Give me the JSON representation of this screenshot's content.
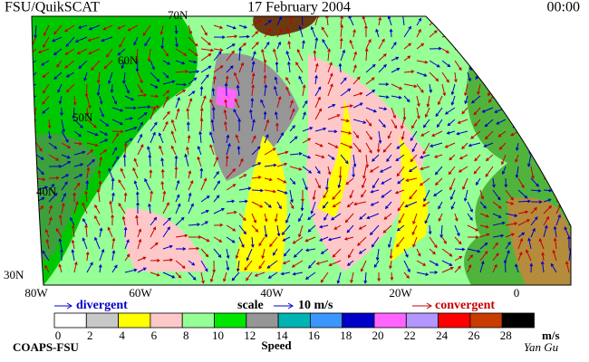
{
  "header": {
    "source": "FSU/QuikSCAT",
    "date": "17 February 2004",
    "time": "00:00"
  },
  "map": {
    "lat_labels": [
      "70N",
      "60N",
      "50N",
      "40N",
      "30N"
    ],
    "lon_labels": [
      "80W",
      "60W",
      "40W",
      "20W",
      "0"
    ]
  },
  "legend": {
    "divergent": "divergent",
    "scale": "scale",
    "scale_value": "10 m/s",
    "convergent": "convergent",
    "colorbar": {
      "ticks": [
        0,
        2,
        4,
        6,
        8,
        10,
        12,
        14,
        16,
        18,
        20,
        22,
        24,
        26,
        28
      ],
      "colors": [
        "#ffffff",
        "#c8c8c8",
        "#ffff00",
        "#ffc8c8",
        "#96ff96",
        "#00e600",
        "#969696",
        "#00b4b4",
        "#3c96ff",
        "#0000c8",
        "#ff64ff",
        "#b496ff",
        "#ff0000",
        "#c83c00",
        "#000000"
      ],
      "unit": "m/s",
      "label": "Speed"
    }
  },
  "footer": {
    "credit": "COAPS-FSU",
    "author": "Yan Gu"
  }
}
